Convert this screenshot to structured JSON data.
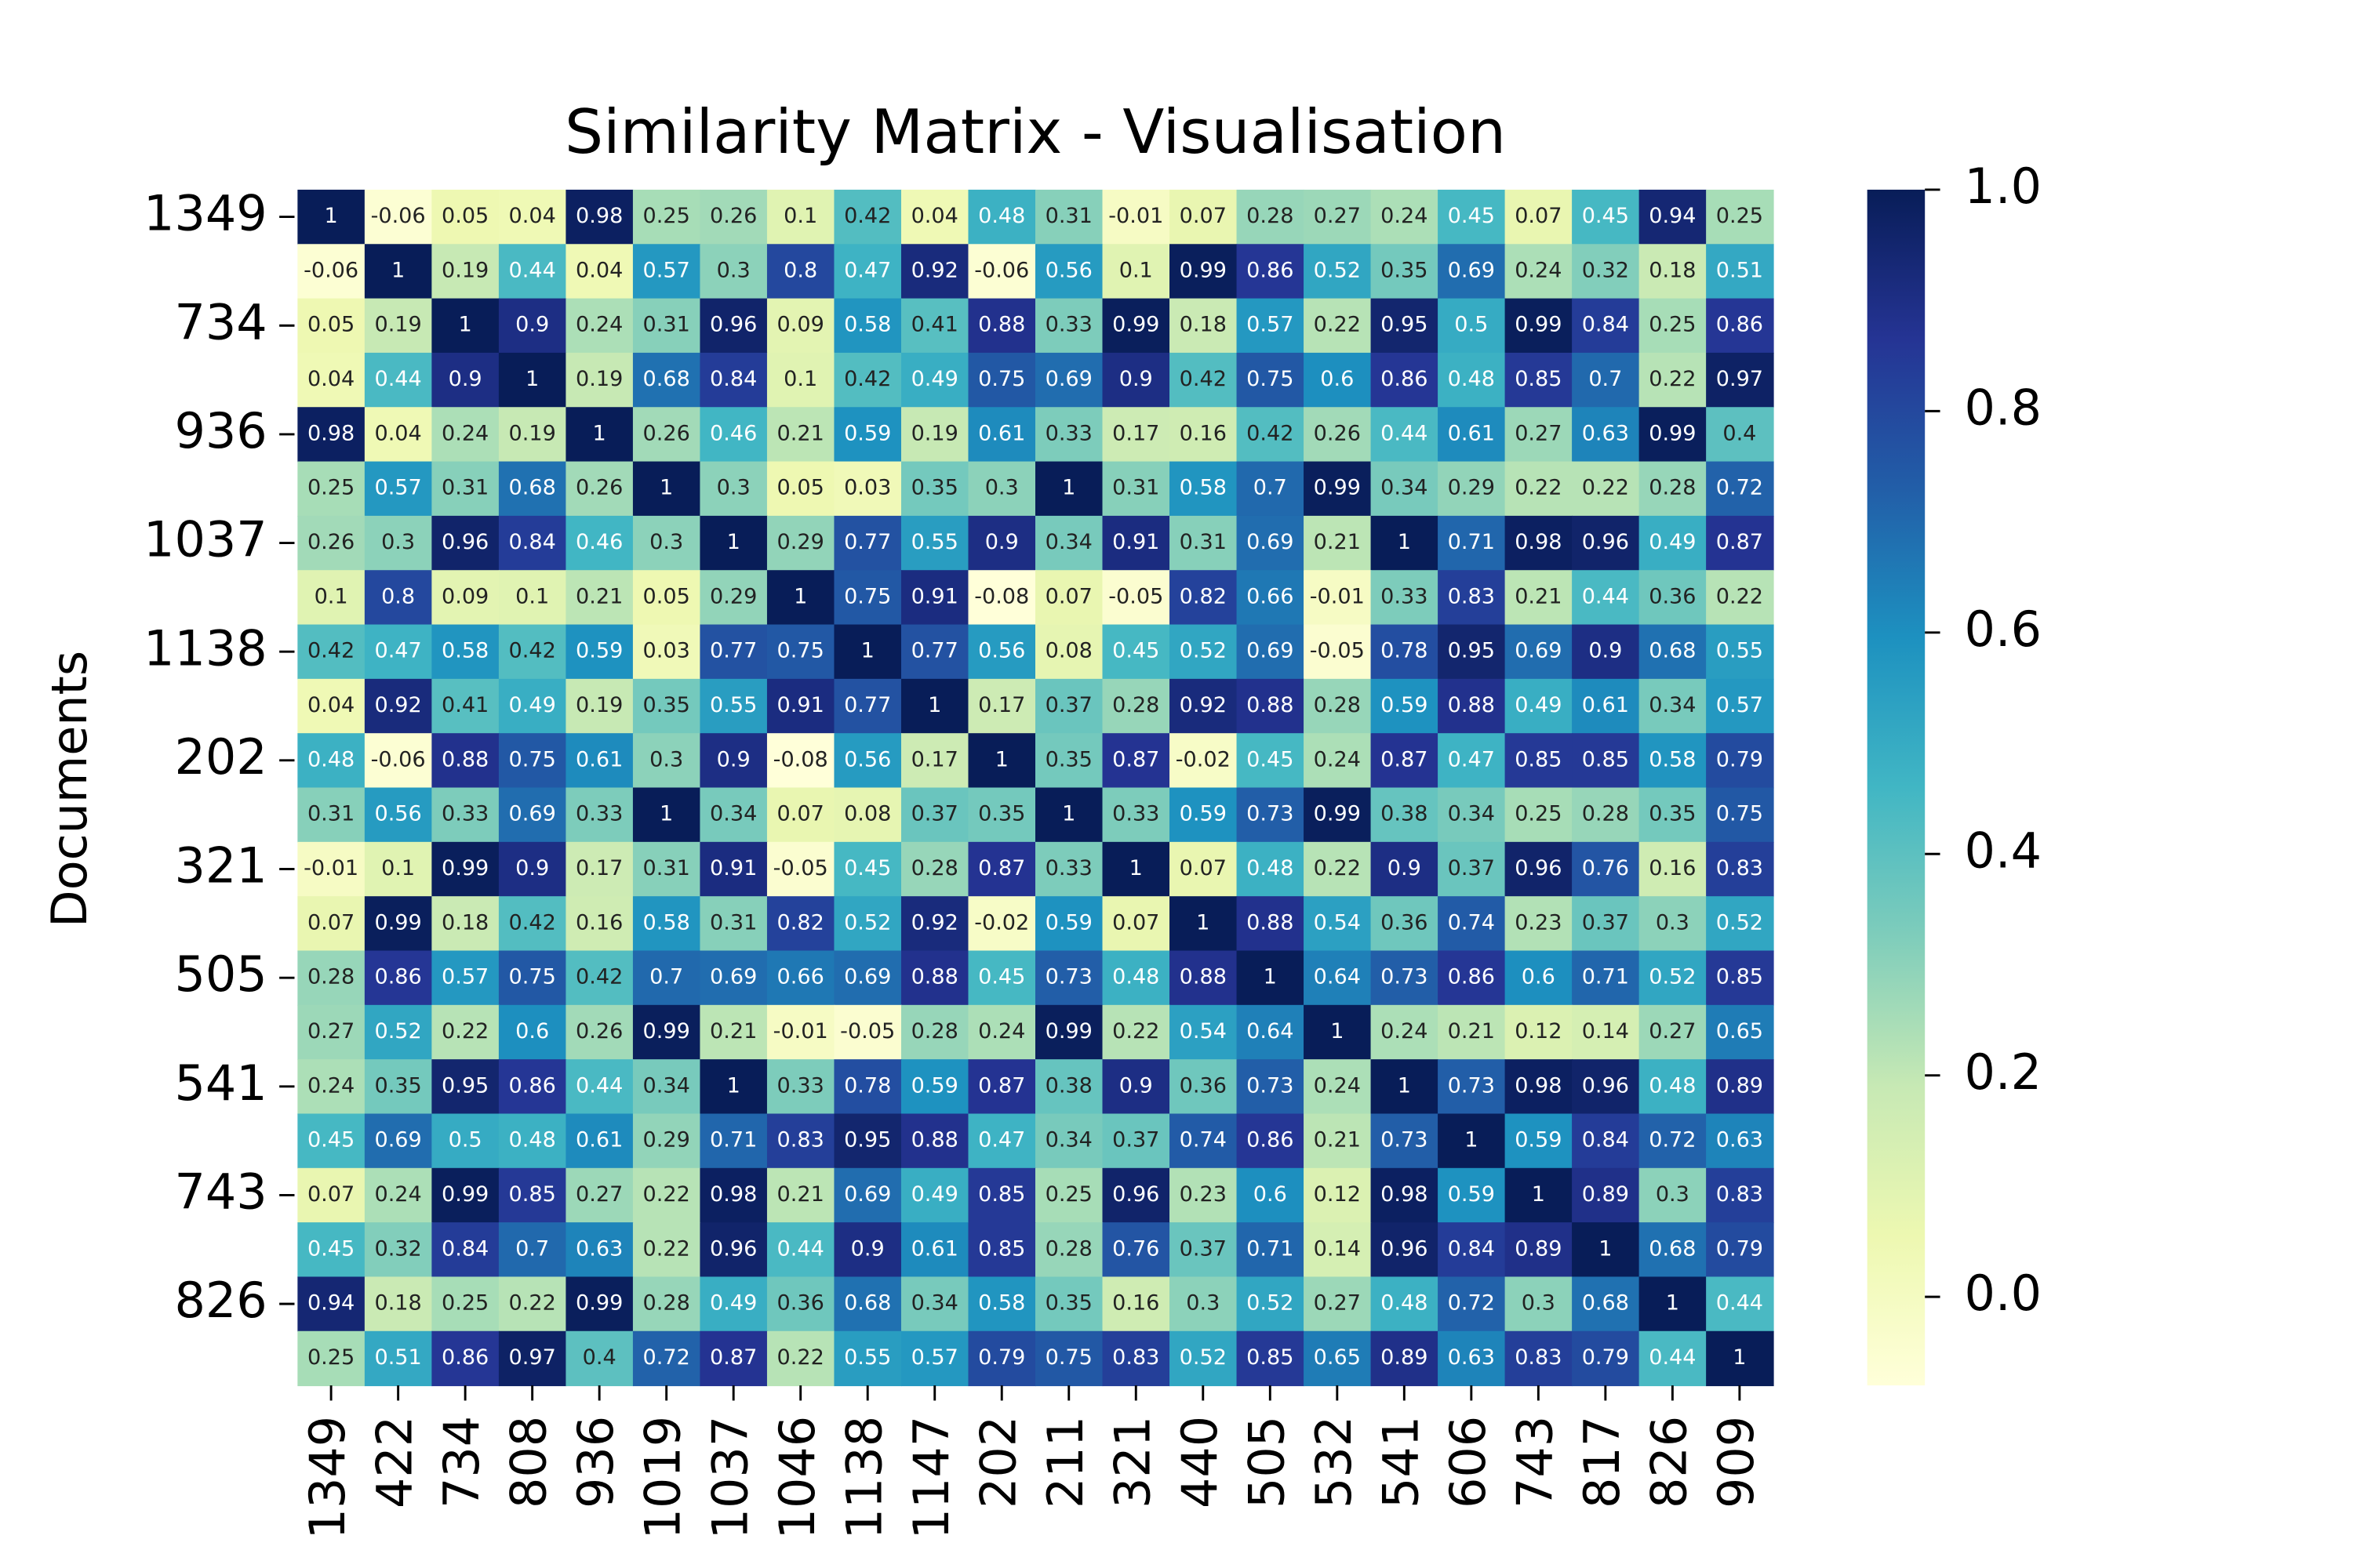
{
  "chart_data": {
    "type": "heatmap",
    "title": "Similarity Matrix - Visualisation",
    "y_label": "Documents",
    "x_categories": [
      "1349",
      "422",
      "734",
      "808",
      "936",
      "1019",
      "1037",
      "1046",
      "1138",
      "1147",
      "202",
      "211",
      "321",
      "440",
      "505",
      "532",
      "541",
      "606",
      "743",
      "817",
      "826",
      "909"
    ],
    "y_categories": [
      "1349",
      null,
      "734",
      null,
      "936",
      null,
      "1037",
      null,
      "1138",
      null,
      "202",
      null,
      "321",
      null,
      "505",
      null,
      "541",
      null,
      "743",
      null,
      "826",
      null
    ],
    "values": [
      [
        1,
        -0.06,
        0.05,
        0.04,
        0.98,
        0.25,
        0.26,
        0.1,
        0.42,
        0.04,
        0.48,
        0.31,
        -0.01,
        0.07,
        0.28,
        0.27,
        0.24,
        0.45,
        0.07,
        0.45,
        0.94,
        0.25
      ],
      [
        -0.06,
        1,
        0.19,
        0.44,
        0.04,
        0.57,
        0.3,
        0.8,
        0.47,
        0.92,
        -0.06,
        0.56,
        0.1,
        0.99,
        0.86,
        0.52,
        0.35,
        0.69,
        0.24,
        0.32,
        0.18,
        0.51
      ],
      [
        0.05,
        0.19,
        1,
        0.9,
        0.24,
        0.31,
        0.96,
        0.09,
        0.58,
        0.41,
        0.88,
        0.33,
        0.99,
        0.18,
        0.57,
        0.22,
        0.95,
        0.5,
        0.99,
        0.84,
        0.25,
        0.86
      ],
      [
        0.04,
        0.44,
        0.9,
        1,
        0.19,
        0.68,
        0.84,
        0.1,
        0.42,
        0.49,
        0.75,
        0.69,
        0.9,
        0.42,
        0.75,
        0.6,
        0.86,
        0.48,
        0.85,
        0.7,
        0.22,
        0.97
      ],
      [
        0.98,
        0.04,
        0.24,
        0.19,
        1,
        0.26,
        0.46,
        0.21,
        0.59,
        0.19,
        0.61,
        0.33,
        0.17,
        0.16,
        0.42,
        0.26,
        0.44,
        0.61,
        0.27,
        0.63,
        0.99,
        0.4
      ],
      [
        0.25,
        0.57,
        0.31,
        0.68,
        0.26,
        1,
        0.3,
        0.05,
        0.03,
        0.35,
        0.3,
        1,
        0.31,
        0.58,
        0.7,
        0.99,
        0.34,
        0.29,
        0.22,
        0.22,
        0.28,
        0.72
      ],
      [
        0.26,
        0.3,
        0.96,
        0.84,
        0.46,
        0.3,
        1,
        0.29,
        0.77,
        0.55,
        0.9,
        0.34,
        0.91,
        0.31,
        0.69,
        0.21,
        1,
        0.71,
        0.98,
        0.96,
        0.49,
        0.87
      ],
      [
        0.1,
        0.8,
        0.09,
        0.1,
        0.21,
        0.05,
        0.29,
        1,
        0.75,
        0.91,
        -0.08,
        0.07,
        -0.05,
        0.82,
        0.66,
        -0.01,
        0.33,
        0.83,
        0.21,
        0.44,
        0.36,
        0.22
      ],
      [
        0.42,
        0.47,
        0.58,
        0.42,
        0.59,
        0.03,
        0.77,
        0.75,
        1,
        0.77,
        0.56,
        0.08,
        0.45,
        0.52,
        0.69,
        -0.05,
        0.78,
        0.95,
        0.69,
        0.9,
        0.68,
        0.55
      ],
      [
        0.04,
        0.92,
        0.41,
        0.49,
        0.19,
        0.35,
        0.55,
        0.91,
        0.77,
        1,
        0.17,
        0.37,
        0.28,
        0.92,
        0.88,
        0.28,
        0.59,
        0.88,
        0.49,
        0.61,
        0.34,
        0.57
      ],
      [
        0.48,
        -0.06,
        0.88,
        0.75,
        0.61,
        0.3,
        0.9,
        -0.08,
        0.56,
        0.17,
        1,
        0.35,
        0.87,
        -0.02,
        0.45,
        0.24,
        0.87,
        0.47,
        0.85,
        0.85,
        0.58,
        0.79
      ],
      [
        0.31,
        0.56,
        0.33,
        0.69,
        0.33,
        1,
        0.34,
        0.07,
        0.08,
        0.37,
        0.35,
        1,
        0.33,
        0.59,
        0.73,
        0.99,
        0.38,
        0.34,
        0.25,
        0.28,
        0.35,
        0.75
      ],
      [
        -0.01,
        0.1,
        0.99,
        0.9,
        0.17,
        0.31,
        0.91,
        -0.05,
        0.45,
        0.28,
        0.87,
        0.33,
        1,
        0.07,
        0.48,
        0.22,
        0.9,
        0.37,
        0.96,
        0.76,
        0.16,
        0.83
      ],
      [
        0.07,
        0.99,
        0.18,
        0.42,
        0.16,
        0.58,
        0.31,
        0.82,
        0.52,
        0.92,
        -0.02,
        0.59,
        0.07,
        1,
        0.88,
        0.54,
        0.36,
        0.74,
        0.23,
        0.37,
        0.3,
        0.52
      ],
      [
        0.28,
        0.86,
        0.57,
        0.75,
        0.42,
        0.7,
        0.69,
        0.66,
        0.69,
        0.88,
        0.45,
        0.73,
        0.48,
        0.88,
        1,
        0.64,
        0.73,
        0.86,
        0.6,
        0.71,
        0.52,
        0.85
      ],
      [
        0.27,
        0.52,
        0.22,
        0.6,
        0.26,
        0.99,
        0.21,
        -0.01,
        -0.05,
        0.28,
        0.24,
        0.99,
        0.22,
        0.54,
        0.64,
        1,
        0.24,
        0.21,
        0.12,
        0.14,
        0.27,
        0.65
      ],
      [
        0.24,
        0.35,
        0.95,
        0.86,
        0.44,
        0.34,
        1,
        0.33,
        0.78,
        0.59,
        0.87,
        0.38,
        0.9,
        0.36,
        0.73,
        0.24,
        1,
        0.73,
        0.98,
        0.96,
        0.48,
        0.89
      ],
      [
        0.45,
        0.69,
        0.5,
        0.48,
        0.61,
        0.29,
        0.71,
        0.83,
        0.95,
        0.88,
        0.47,
        0.34,
        0.37,
        0.74,
        0.86,
        0.21,
        0.73,
        1,
        0.59,
        0.84,
        0.72,
        0.63
      ],
      [
        0.07,
        0.24,
        0.99,
        0.85,
        0.27,
        0.22,
        0.98,
        0.21,
        0.69,
        0.49,
        0.85,
        0.25,
        0.96,
        0.23,
        0.6,
        0.12,
        0.98,
        0.59,
        1,
        0.89,
        0.3,
        0.83
      ],
      [
        0.45,
        0.32,
        0.84,
        0.7,
        0.63,
        0.22,
        0.96,
        0.44,
        0.9,
        0.61,
        0.85,
        0.28,
        0.76,
        0.37,
        0.71,
        0.14,
        0.96,
        0.84,
        0.89,
        1,
        0.68,
        0.79
      ],
      [
        0.94,
        0.18,
        0.25,
        0.22,
        0.99,
        0.28,
        0.49,
        0.36,
        0.68,
        0.34,
        0.58,
        0.35,
        0.16,
        0.3,
        0.52,
        0.27,
        0.48,
        0.72,
        0.3,
        0.68,
        1,
        0.44
      ],
      [
        0.25,
        0.51,
        0.86,
        0.97,
        0.4,
        0.72,
        0.87,
        0.22,
        0.55,
        0.57,
        0.79,
        0.75,
        0.83,
        0.52,
        0.85,
        0.65,
        0.89,
        0.63,
        0.83,
        0.79,
        0.44,
        1
      ]
    ],
    "colormap": [
      "#ffffd9",
      "#edf8b1",
      "#c7e9b4",
      "#7fcdbb",
      "#41b6c4",
      "#1d91c0",
      "#225ea8",
      "#253494",
      "#081d58"
    ],
    "zlim": [
      -0.08,
      1
    ],
    "zticks": [
      {
        "value": 0,
        "label": "0.0"
      },
      {
        "value": 0.2,
        "label": "0.2"
      },
      {
        "value": 0.4,
        "label": "0.4"
      },
      {
        "value": 0.6,
        "label": "0.6"
      },
      {
        "value": 0.8,
        "label": "0.8"
      },
      {
        "value": 1,
        "label": "1.0"
      }
    ]
  }
}
